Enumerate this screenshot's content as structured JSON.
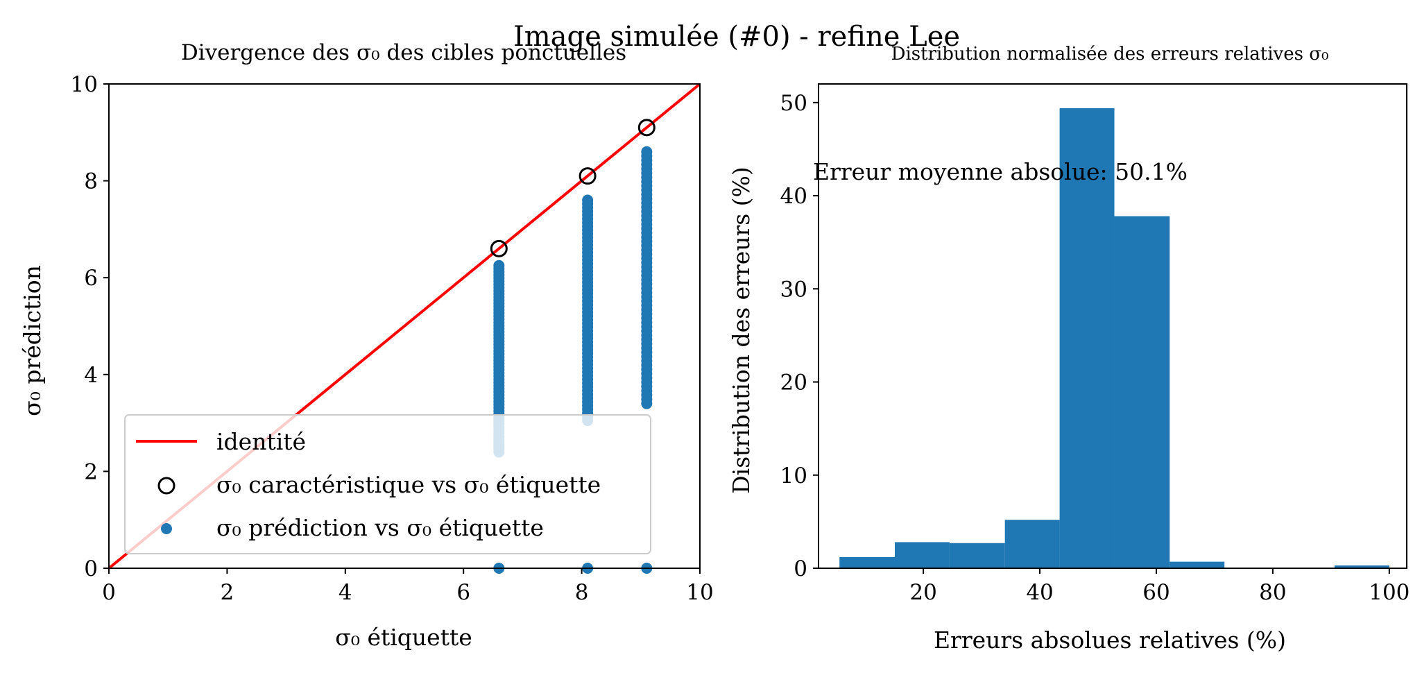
{
  "figure": {
    "suptitle": "Image simulée (#0) - refine Lee"
  },
  "colors": {
    "identity": "#ff0000",
    "scatter": "#1f77b4",
    "hist": "#1f77b4",
    "circle": "#000000"
  },
  "chart_data": [
    {
      "type": "scatter",
      "title": "Divergence des σ₀ des cibles ponctuelles",
      "xlabel": "σ₀ étiquette",
      "ylabel": "σ₀ prédiction",
      "xlim": [
        0,
        10
      ],
      "ylim": [
        0,
        10
      ],
      "xticks": [
        0,
        2,
        4,
        6,
        8,
        10
      ],
      "yticks": [
        0,
        2,
        4,
        6,
        8,
        10
      ],
      "legend_position": "lower-left",
      "legend": [
        "identité",
        "σ₀ caractéristique vs σ₀ étiquette",
        "σ₀ prédiction vs σ₀ étiquette"
      ],
      "identity_line": {
        "x": [
          0,
          10
        ],
        "y": [
          0,
          10
        ]
      },
      "characteristic_points": [
        {
          "x": 6.6,
          "y": 6.6
        },
        {
          "x": 8.1,
          "y": 8.1
        },
        {
          "x": 9.1,
          "y": 9.1
        }
      ],
      "prediction_columns": [
        {
          "x": 6.6,
          "y_min": 2.4,
          "y_max": 6.25,
          "zero_point": true
        },
        {
          "x": 8.1,
          "y_min": 3.05,
          "y_max": 7.6,
          "zero_point": true
        },
        {
          "x": 9.1,
          "y_min": 3.4,
          "y_max": 8.6,
          "zero_point": true
        }
      ]
    },
    {
      "type": "bar",
      "title": "Distribution normalisée des erreurs relatives σ₀",
      "xlabel": "Erreurs absolues relatives (%)",
      "ylabel": "Distribution des erreurs (%)",
      "annotation": "Erreur moyenne absolue: 50.1%",
      "xlim": [
        2,
        103
      ],
      "ylim": [
        0,
        52
      ],
      "xticks": [
        20,
        40,
        60,
        80,
        100
      ],
      "yticks": [
        0,
        10,
        20,
        30,
        40,
        50
      ],
      "bins": [
        {
          "x0": 5.6,
          "x1": 15.1,
          "value": 1.2
        },
        {
          "x0": 15.1,
          "x1": 24.5,
          "value": 2.8
        },
        {
          "x0": 24.5,
          "x1": 34.0,
          "value": 2.7
        },
        {
          "x0": 34.0,
          "x1": 43.4,
          "value": 5.2
        },
        {
          "x0": 43.4,
          "x1": 52.8,
          "value": 49.4
        },
        {
          "x0": 52.8,
          "x1": 62.3,
          "value": 37.8
        },
        {
          "x0": 62.3,
          "x1": 71.7,
          "value": 0.7
        },
        {
          "x0": 71.7,
          "x1": 81.2,
          "value": 0
        },
        {
          "x0": 81.2,
          "x1": 90.6,
          "value": 0
        },
        {
          "x0": 90.6,
          "x1": 100.0,
          "value": 0.3
        }
      ]
    }
  ]
}
